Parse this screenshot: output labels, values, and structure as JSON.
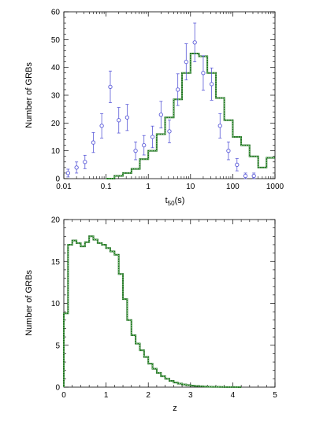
{
  "chart_data": [
    {
      "type": "scatter",
      "xlabel_main": "t",
      "xlabel_sub": "50",
      "xlabel_unit": "(s)",
      "ylabel": "Number of GRBs",
      "x_scale": "log",
      "xlim": [
        0.01,
        1000
      ],
      "ylim": [
        0,
        60
      ],
      "x_tick_labels": [
        "0.01",
        "0.1",
        "1",
        "10",
        "100",
        "1000"
      ],
      "y_tick_labels": [
        "0",
        "10",
        "20",
        "30",
        "40",
        "50",
        "60"
      ],
      "grid": false,
      "points": [
        {
          "x": 0.0126,
          "y": 2,
          "err": 1.4
        },
        {
          "x": 0.02,
          "y": 4,
          "err": 2
        },
        {
          "x": 0.0316,
          "y": 6,
          "err": 2.4
        },
        {
          "x": 0.05,
          "y": 13,
          "err": 3.6
        },
        {
          "x": 0.079,
          "y": 19,
          "err": 4.4
        },
        {
          "x": 0.126,
          "y": 33,
          "err": 5.7
        },
        {
          "x": 0.2,
          "y": 21,
          "err": 4.6
        },
        {
          "x": 0.316,
          "y": 22,
          "err": 4.7
        },
        {
          "x": 0.5,
          "y": 10,
          "err": 3.2
        },
        {
          "x": 0.79,
          "y": 12,
          "err": 3.5
        },
        {
          "x": 1.26,
          "y": 15,
          "err": 3.9
        },
        {
          "x": 2.0,
          "y": 23,
          "err": 4.8
        },
        {
          "x": 3.16,
          "y": 17,
          "err": 4.1
        },
        {
          "x": 5.0,
          "y": 32,
          "err": 5.7
        },
        {
          "x": 7.9,
          "y": 42,
          "err": 6.5
        },
        {
          "x": 12.6,
          "y": 49,
          "err": 7.0
        },
        {
          "x": 20.0,
          "y": 38,
          "err": 6.2
        },
        {
          "x": 31.6,
          "y": 34,
          "err": 5.8
        },
        {
          "x": 50.0,
          "y": 19,
          "err": 4.4
        },
        {
          "x": 79.0,
          "y": 10,
          "err": 3.2
        },
        {
          "x": 126.0,
          "y": 5,
          "err": 2.2
        },
        {
          "x": 200.0,
          "y": 1,
          "err": 1.0
        },
        {
          "x": 316.0,
          "y": 1,
          "err": 1.0
        }
      ],
      "model_histogram": {
        "edges": [
          0.1,
          0.158,
          0.25,
          0.4,
          0.63,
          1.0,
          1.58,
          2.5,
          4.0,
          6.3,
          10,
          15.8,
          25,
          40,
          63,
          100,
          158,
          250,
          400,
          630,
          1000
        ],
        "values": [
          0,
          1,
          2,
          3.5,
          7,
          10,
          16,
          22,
          28.5,
          38,
          45,
          44,
          38,
          29,
          21,
          15,
          12,
          8,
          4,
          7.5
        ]
      },
      "colors": {
        "points": "#5a5ad8",
        "model": "#1a6a1a",
        "model_dots": "#90d890"
      }
    },
    {
      "type": "line",
      "xlabel": "z",
      "ylabel": "Number of GRBs",
      "xlim": [
        0,
        5
      ],
      "ylim": [
        0,
        20
      ],
      "x_tick_labels": [
        "0",
        "1",
        "2",
        "3",
        "4",
        "5"
      ],
      "y_tick_labels": [
        "0",
        "5",
        "10",
        "15",
        "20"
      ],
      "grid": false,
      "step_width": 0.1,
      "model_histogram": {
        "x_start": 0,
        "values": [
          8.8,
          17.0,
          17.5,
          17.2,
          16.8,
          17.3,
          18.0,
          17.6,
          17.2,
          17.0,
          16.6,
          16.2,
          15.8,
          13.5,
          10.5,
          8.0,
          6.2,
          5.2,
          4.4,
          3.6,
          2.8,
          2.2,
          1.7,
          1.3,
          1.0,
          0.75,
          0.55,
          0.42,
          0.32,
          0.24,
          0.18,
          0.13,
          0.1,
          0.07,
          0.05,
          0.04,
          0.03,
          0.02,
          0.015,
          0.01,
          0.007,
          0.005
        ]
      },
      "colors": {
        "model": "#1a6a1a",
        "model_dots": "#90d890"
      }
    }
  ]
}
